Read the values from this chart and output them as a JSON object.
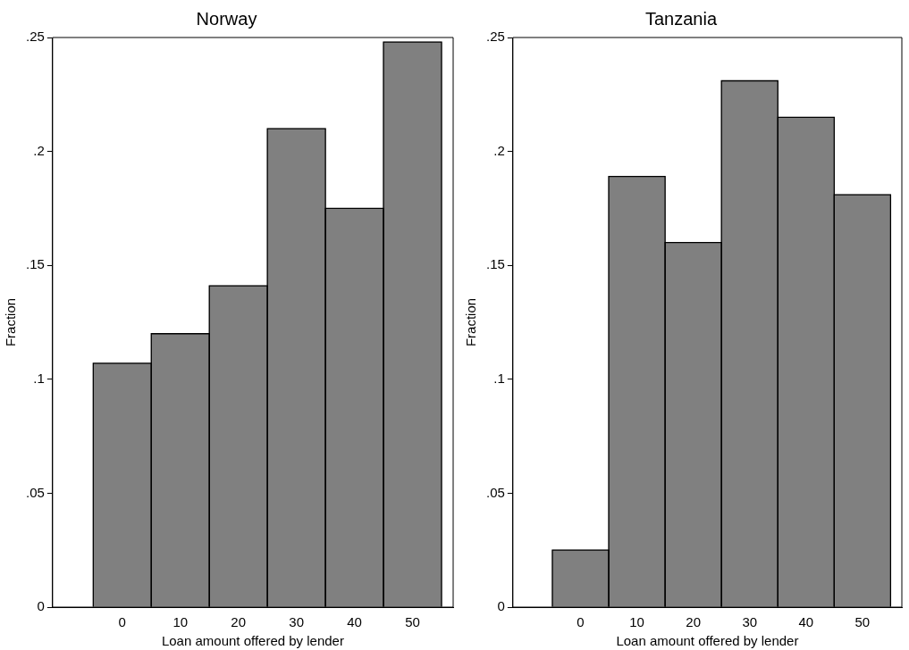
{
  "chart_data": [
    {
      "type": "histogram",
      "title": "Norway",
      "xlabel": "Loan amount offered by lender",
      "ylabel": "Fraction",
      "bins": [
        -5,
        5,
        15,
        25,
        35,
        45,
        55
      ],
      "values": [
        0.107,
        0.12,
        0.141,
        0.21,
        0.175,
        0.248
      ],
      "color": "#808080",
      "xlim": [
        -12,
        57
      ],
      "xticks": [
        0,
        10,
        20,
        30,
        40,
        50
      ],
      "ylim": [
        0,
        0.25
      ],
      "yticks": [
        0,
        {
          "value": 0.05,
          "label": ".05"
        },
        {
          "value": 0.1,
          "label": ".1"
        },
        {
          "value": 0.15,
          "label": ".15"
        },
        {
          "value": 0.2,
          "label": ".2"
        },
        {
          "value": 0.25,
          "label": ".25"
        }
      ],
      "grid": false,
      "legend": false
    },
    {
      "type": "histogram",
      "title": "Tanzania",
      "xlabel": "Loan amount offered by lender",
      "ylabel": "Fraction",
      "bins": [
        -5,
        5,
        15,
        25,
        35,
        45,
        55
      ],
      "values": [
        0.025,
        0.189,
        0.16,
        0.231,
        0.215,
        0.181
      ],
      "color": "#808080",
      "xlim": [
        -12,
        57
      ],
      "xticks": [
        0,
        10,
        20,
        30,
        40,
        50
      ],
      "ylim": [
        0,
        0.25
      ],
      "yticks": [
        0,
        {
          "value": 0.05,
          "label": ".05"
        },
        {
          "value": 0.1,
          "label": ".1"
        },
        {
          "value": 0.15,
          "label": ".15"
        },
        {
          "value": 0.2,
          "label": ".2"
        },
        {
          "value": 0.25,
          "label": ".25"
        }
      ],
      "grid": false,
      "legend": false
    }
  ]
}
